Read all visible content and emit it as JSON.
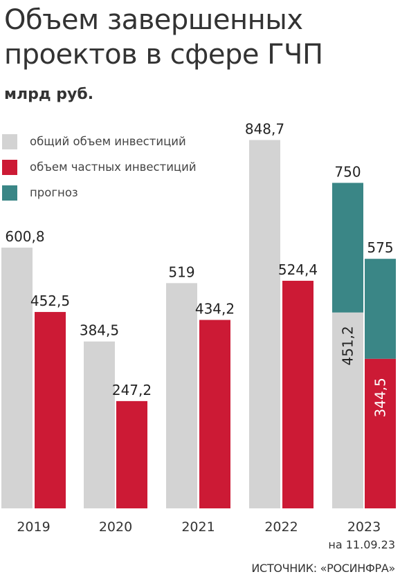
{
  "title_lines": [
    "Объем завершенных",
    "проектов в сфере ГЧП"
  ],
  "units": "млрд руб.",
  "legend": [
    {
      "label": "общий объем инвестиций",
      "color": "#d3d3d3"
    },
    {
      "label": "объем частных инвестиций",
      "color": "#cc1a35"
    },
    {
      "label": "прогноз",
      "color": "#3a8686"
    }
  ],
  "chart_data": {
    "type": "bar",
    "categories": [
      "2019",
      "2020",
      "2021",
      "2022",
      "2023"
    ],
    "series": [
      {
        "name": "общий объем инвестиций",
        "values": [
          600.8,
          384.5,
          519,
          848.7,
          451.2
        ],
        "labels": [
          "600,8",
          "384,5",
          "519",
          "848,7",
          "451,2"
        ],
        "color": "#d3d3d3"
      },
      {
        "name": "объем частных инвестиций",
        "values": [
          452.5,
          247.2,
          434.2,
          524.4,
          344.5
        ],
        "labels": [
          "452,5",
          "247,2",
          "434,2",
          "524,4",
          "344,5"
        ],
        "color": "#cc1a35"
      },
      {
        "name": "прогноз",
        "total_values": [
          null,
          null,
          null,
          null,
          750
        ],
        "private_values": [
          null,
          null,
          null,
          null,
          575
        ],
        "labels": [
          "750",
          "575"
        ],
        "color": "#3a8686"
      }
    ],
    "ylim": [
      0,
      900
    ],
    "grid": false,
    "legend_position": "top-left"
  },
  "footer": {
    "date": "на 11.09.23",
    "source": "ИСТОЧНИК: «РОСИНФРА»"
  }
}
